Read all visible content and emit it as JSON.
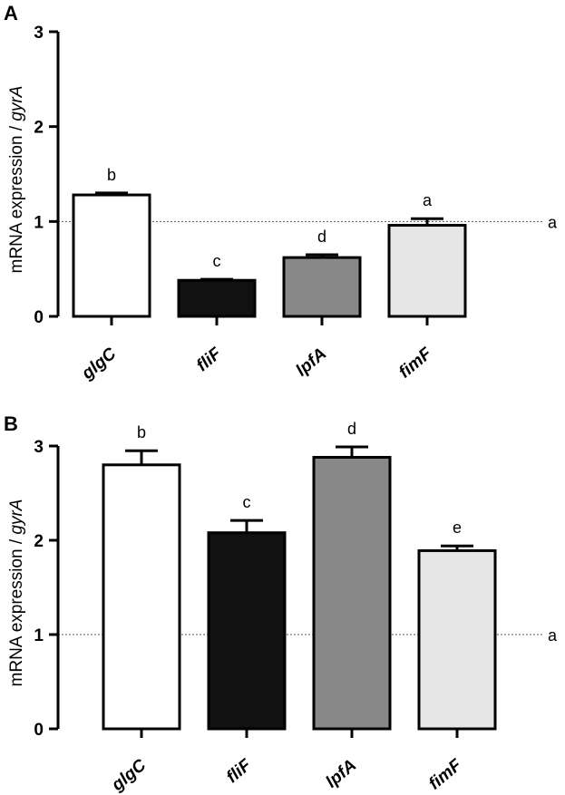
{
  "chart_data": [
    {
      "type": "bar",
      "panel_label": "A",
      "categories": [
        "glgC",
        "fliF",
        "lpfA",
        "fimF"
      ],
      "values": [
        1.28,
        0.38,
        0.62,
        0.96
      ],
      "errors": [
        0.02,
        0.01,
        0.03,
        0.07
      ],
      "significance": [
        "b",
        "c",
        "d",
        "a"
      ],
      "bar_colors": [
        "#ffffff",
        "#111111",
        "#888888",
        "#e6e6e6"
      ],
      "ylabel_prefix": "mRNA expression / ",
      "ylabel_italic": "gyrA",
      "xlabel": "",
      "ylim": [
        0,
        3
      ],
      "yticks": [
        "0",
        "1",
        "2",
        "3"
      ],
      "reference_line": {
        "value": 1,
        "label": "a"
      },
      "grid": false
    },
    {
      "type": "bar",
      "panel_label": "B",
      "categories": [
        "glgC",
        "fliF",
        "lpfA",
        "fimF"
      ],
      "values": [
        2.8,
        2.08,
        2.88,
        1.89
      ],
      "errors": [
        0.15,
        0.13,
        0.11,
        0.05
      ],
      "significance": [
        "b",
        "c",
        "d",
        "e"
      ],
      "bar_colors": [
        "#ffffff",
        "#111111",
        "#888888",
        "#e6e6e6"
      ],
      "ylabel_prefix": "mRNA expression / ",
      "ylabel_italic": "gyrA",
      "xlabel": "",
      "ylim": [
        0,
        3
      ],
      "yticks": [
        "0",
        "1",
        "2",
        "3"
      ],
      "reference_line": {
        "value": 1,
        "label": "a"
      },
      "grid": false
    }
  ]
}
